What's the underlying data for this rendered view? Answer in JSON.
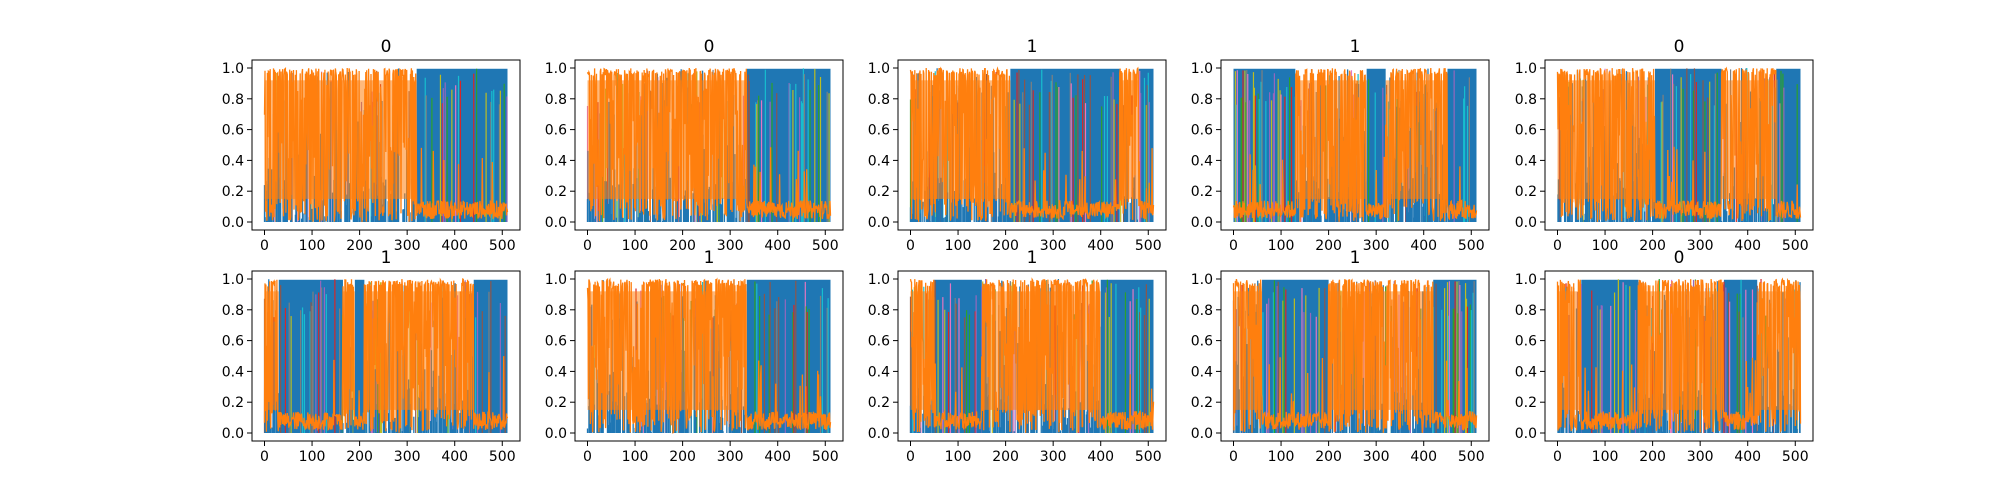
{
  "chart_data": {
    "type": "line",
    "layout": "2x5 grid of subplots",
    "series_colors": [
      "#1f77b4",
      "#ff7f0e",
      "#2ca02c",
      "#d62728",
      "#9467bd",
      "#8c564b",
      "#e377c2",
      "#7f7f7f",
      "#bcbd22",
      "#17becf"
    ],
    "xlim": [
      0,
      511
    ],
    "ylim": [
      0,
      1
    ],
    "x_ticks": [
      "0",
      "100",
      "200",
      "300",
      "400",
      "500"
    ],
    "y_ticks": [
      "0.0",
      "0.2",
      "0.4",
      "0.6",
      "0.8",
      "1.0"
    ],
    "grid": false,
    "description_of_dense_series": "Per-position class probabilities (~512 positions) plotted as dense overlapping lines; blue and orange dominate alternating segments",
    "subplots": [
      {
        "title": "0",
        "orange_segments": [
          [
            0,
            320
          ]
        ],
        "blue_segments": [
          [
            320,
            511
          ]
        ]
      },
      {
        "title": "0",
        "orange_segments": [
          [
            0,
            335
          ]
        ],
        "blue_segments": [
          [
            335,
            511
          ]
        ]
      },
      {
        "title": "1",
        "orange_segments": [
          [
            0,
            210
          ],
          [
            440,
            480
          ]
        ],
        "blue_segments": [
          [
            210,
            440
          ],
          [
            480,
            511
          ]
        ]
      },
      {
        "title": "1",
        "orange_segments": [
          [
            130,
            280
          ],
          [
            320,
            450
          ]
        ],
        "blue_segments": [
          [
            0,
            130
          ],
          [
            280,
            320
          ],
          [
            450,
            511
          ]
        ]
      },
      {
        "title": "0",
        "orange_segments": [
          [
            0,
            205
          ],
          [
            345,
            460
          ]
        ],
        "blue_segments": [
          [
            205,
            345
          ],
          [
            460,
            511
          ]
        ]
      },
      {
        "title": "1",
        "orange_segments": [
          [
            0,
            30
          ],
          [
            165,
            190
          ],
          [
            210,
            440
          ]
        ],
        "blue_segments": [
          [
            30,
            165
          ],
          [
            190,
            210
          ],
          [
            440,
            511
          ]
        ]
      },
      {
        "title": "1",
        "orange_segments": [
          [
            0,
            335
          ]
        ],
        "blue_segments": [
          [
            335,
            511
          ]
        ]
      },
      {
        "title": "1",
        "orange_segments": [
          [
            0,
            50
          ],
          [
            150,
            400
          ]
        ],
        "blue_segments": [
          [
            50,
            150
          ],
          [
            400,
            511
          ]
        ]
      },
      {
        "title": "1",
        "orange_segments": [
          [
            0,
            60
          ],
          [
            200,
            420
          ]
        ],
        "blue_segments": [
          [
            60,
            200
          ],
          [
            420,
            511
          ]
        ]
      },
      {
        "title": "0",
        "orange_segments": [
          [
            0,
            50
          ],
          [
            170,
            350
          ],
          [
            420,
            511
          ]
        ],
        "blue_segments": [
          [
            50,
            170
          ],
          [
            350,
            420
          ]
        ]
      }
    ]
  }
}
